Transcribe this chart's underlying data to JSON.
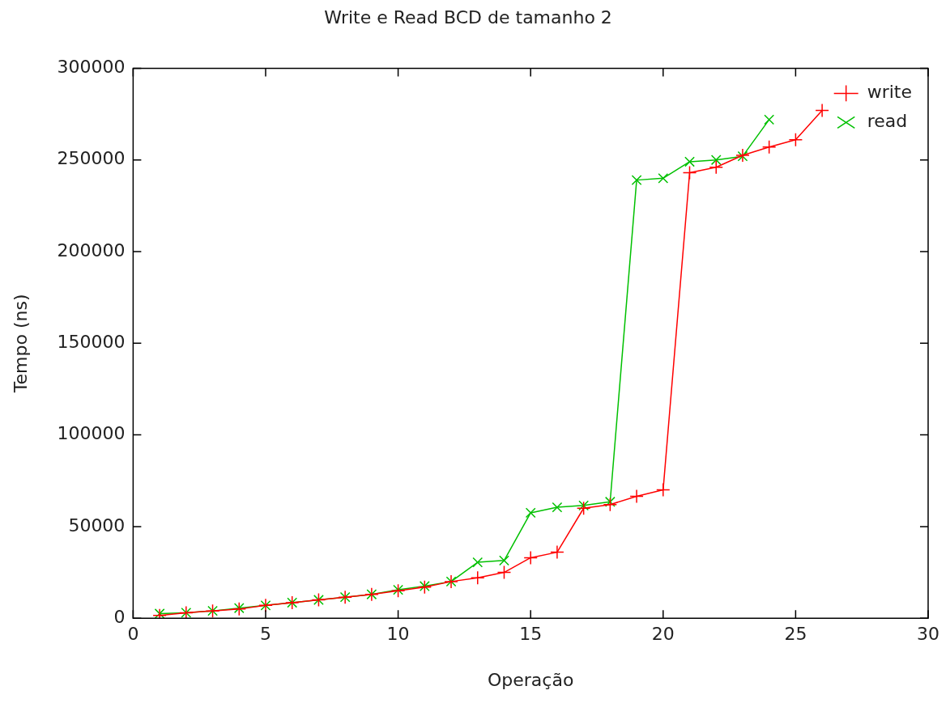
{
  "chart_data": {
    "type": "line",
    "title": "Write e Read BCD de tamanho 2",
    "xlabel": "Operação",
    "ylabel": "Tempo (ns)",
    "xlim": [
      0,
      30
    ],
    "xticks": [
      0,
      5,
      10,
      15,
      20,
      25,
      30
    ],
    "ylim": [
      0,
      300000
    ],
    "yticks": [
      0,
      50000,
      100000,
      150000,
      200000,
      250000,
      300000
    ],
    "legend": "top right",
    "marker": "cross",
    "series": [
      {
        "name": "write",
        "color": "#ff0000",
        "x": [
          1,
          2,
          3,
          4,
          5,
          6,
          7,
          8,
          9,
          10,
          11,
          12,
          13,
          14,
          15,
          16,
          17,
          18,
          19,
          20,
          21,
          22,
          23,
          24,
          25,
          26
        ],
        "values": [
          1500,
          3000,
          4000,
          5000,
          7000,
          8500,
          10000,
          11500,
          13000,
          15000,
          17000,
          20000,
          22000,
          25000,
          33000,
          36000,
          60000,
          62000,
          66500,
          70000,
          243000,
          246000,
          252500,
          257000,
          261000,
          277000
        ]
      },
      {
        "name": "read",
        "color": "#00c000",
        "x": [
          1,
          2,
          3,
          4,
          5,
          6,
          7,
          8,
          9,
          10,
          11,
          12,
          13,
          14,
          15,
          16,
          17,
          18,
          19,
          20,
          21,
          22,
          23,
          24
        ],
        "values": [
          2500,
          3000,
          4000,
          5500,
          7000,
          8500,
          10000,
          11500,
          13000,
          15500,
          17500,
          20000,
          30500,
          31500,
          57500,
          60500,
          61500,
          63500,
          239000,
          240000,
          249000,
          250000,
          252000,
          272000
        ]
      }
    ]
  }
}
